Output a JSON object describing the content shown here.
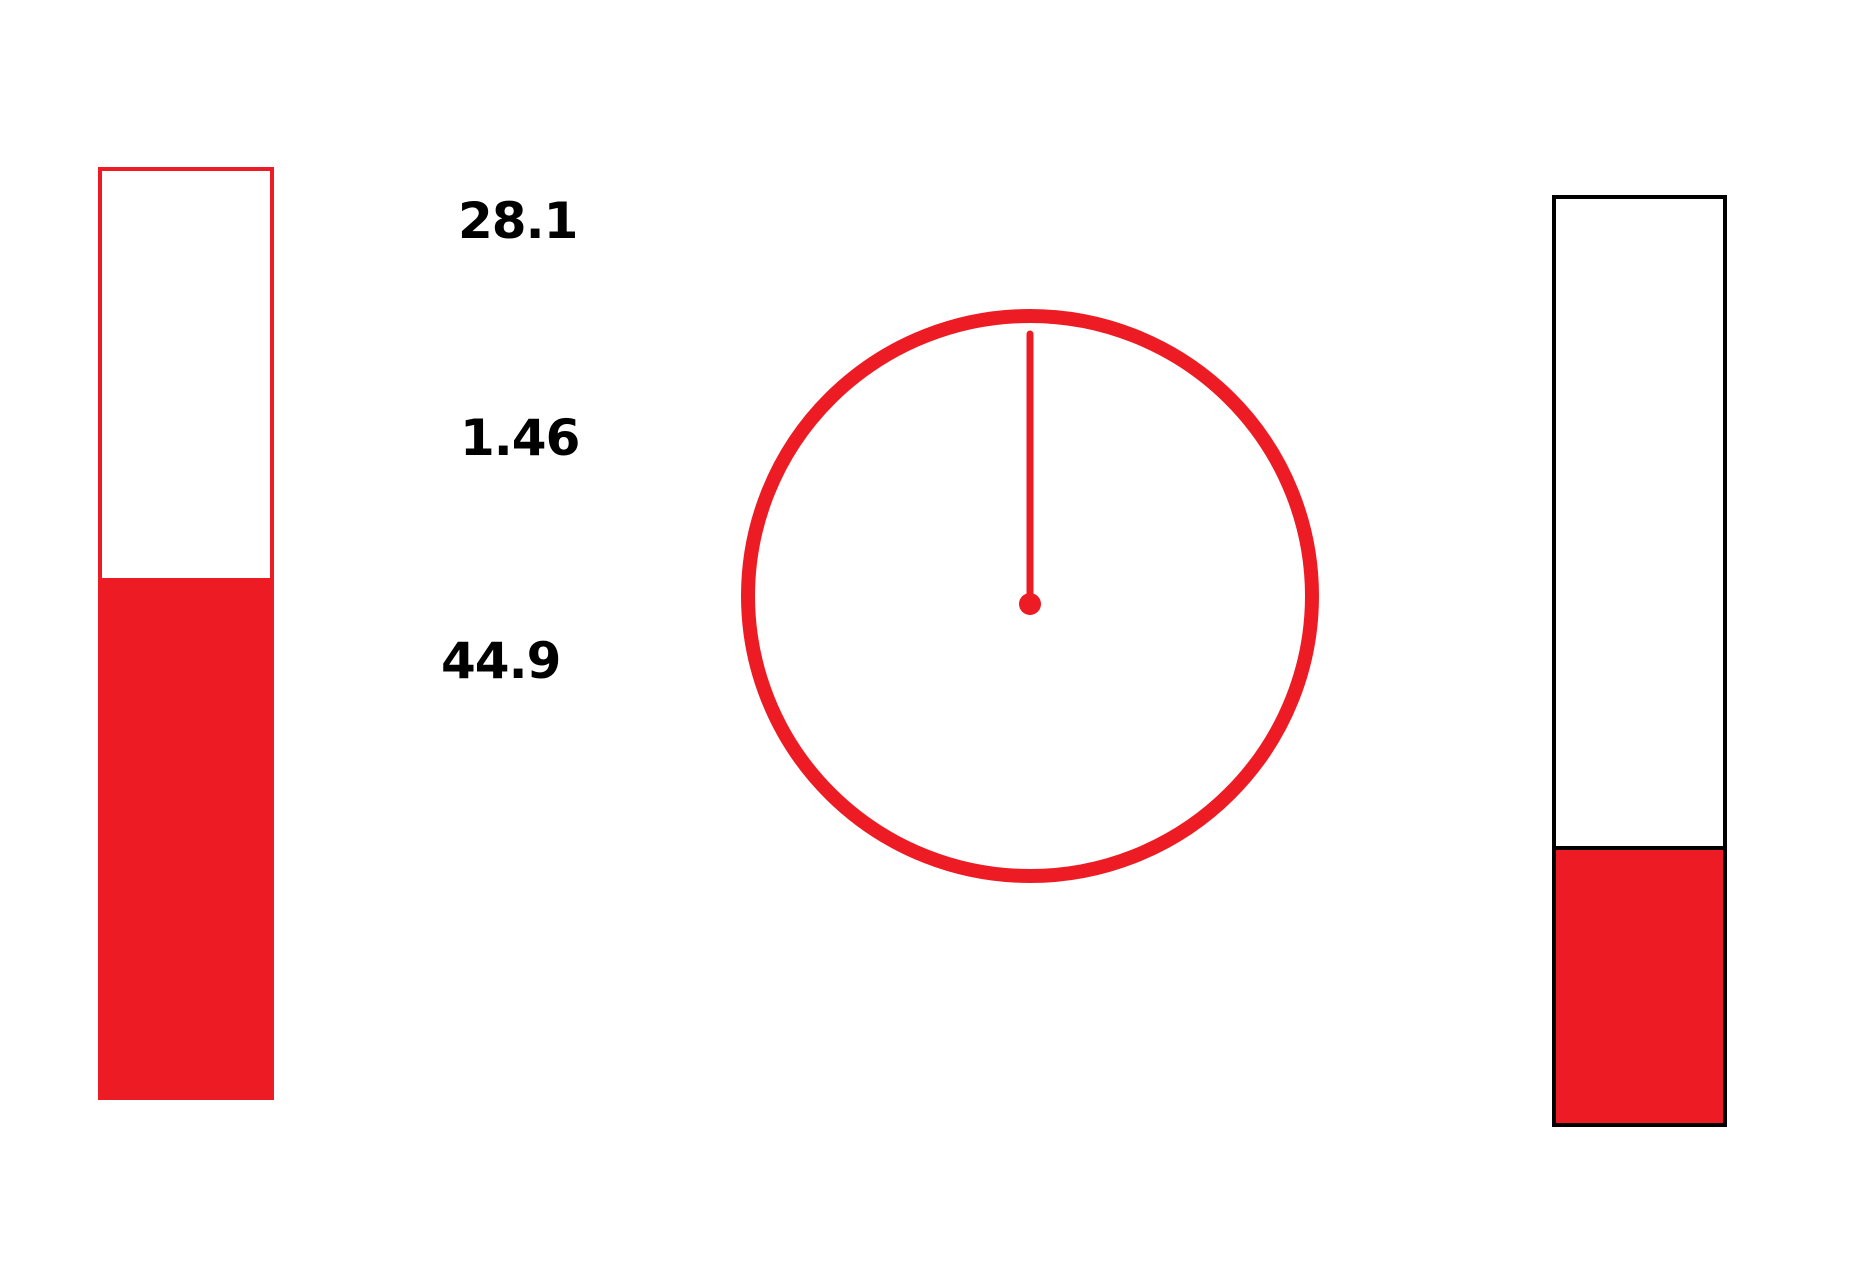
{
  "colors": {
    "fill": "#ed1c24",
    "left_bar_border": "#ed1c24",
    "right_bar_border": "#000000",
    "gauge_stroke": "#ed1c24",
    "text": "#000000",
    "background": "#ffffff"
  },
  "left_bar": {
    "fill_fraction": 0.56
  },
  "right_bar": {
    "fill_fraction": 0.295
  },
  "readouts": [
    {
      "label": "28.1"
    },
    {
      "label": "1.46"
    },
    {
      "label": "44.9"
    }
  ],
  "gauge": {
    "needle_angle_deg": 0
  }
}
